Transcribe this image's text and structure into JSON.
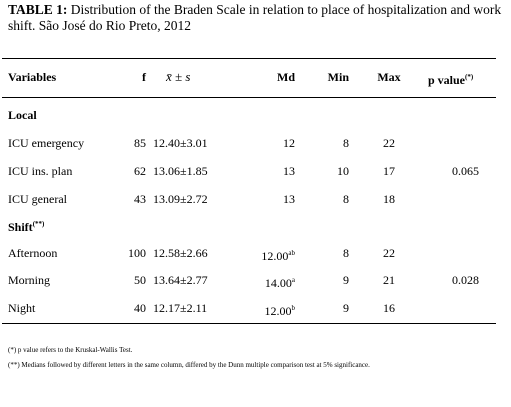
{
  "title": {
    "label": "TABLE 1:",
    "text": "Distribution of the Braden Scale in relation to place of hospitalization and work shift. São José do Rio Preto, 2012"
  },
  "table": {
    "header": {
      "variables": "Variables",
      "f": "f",
      "mean": "x̄ ± s",
      "md": "Md",
      "min": "Min",
      "max": "Max",
      "p": "p value",
      "p_sup": "(*)"
    },
    "rows": [
      {
        "section": "Local"
      },
      {
        "label": "ICU emergency",
        "f": "85",
        "mean": "12.40±3.01",
        "md": "12",
        "min": "8",
        "max": "22"
      },
      {
        "label": "ICU ins. plan",
        "f": "62",
        "mean": "13.06±1.85",
        "md": "13",
        "min": "10",
        "max": "17",
        "p": "0.065"
      },
      {
        "label": "ICU general",
        "f": "43",
        "mean": "13.09±2.72",
        "md": "13",
        "min": "8",
        "max": "18"
      },
      {
        "section": "Shift",
        "section_sup": "(**)"
      },
      {
        "label": "Afternoon",
        "f": "100",
        "mean": "12.58±2.66",
        "md": "12.00",
        "md_sup": "ab",
        "min": "8",
        "max": "22"
      },
      {
        "label": "Morning",
        "f": "50",
        "mean": "13.64±2.77",
        "md": "14.00",
        "md_sup": "a",
        "min": "9",
        "max": "21",
        "p": "0.028"
      },
      {
        "label": "Night",
        "f": "40",
        "mean": "12.17±2.11",
        "md": "12.00",
        "md_sup": "b",
        "min": "9",
        "max": "16"
      }
    ]
  },
  "footnotes": [
    "(*) p value refers to the Kruskal-Wallis Test.",
    "(**) Medians followed by different letters in the same column, differed by the Dunn multiple comparison test at 5% significance."
  ]
}
